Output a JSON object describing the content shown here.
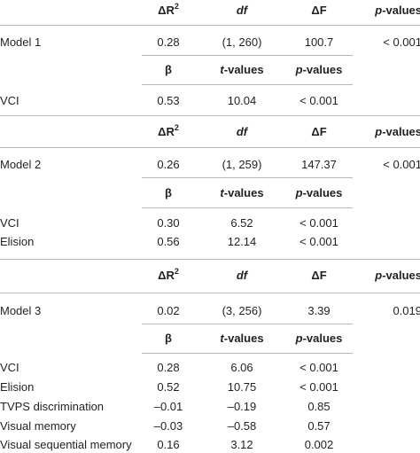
{
  "models": [
    {
      "header": {
        "dr2": "ΔR",
        "dr2_sup": "2",
        "df": "df",
        "dF": "ΔF",
        "p": "p-values"
      },
      "summary": {
        "label": "Model 1",
        "dr2": "0.28",
        "df": "(1, 260)",
        "dF": "100.7",
        "p": "< 0.001"
      },
      "coef_header": {
        "beta": "β",
        "t": "t-values",
        "p": "p-values"
      },
      "predictors": [
        {
          "label": "VCI",
          "beta": "0.53",
          "t": "10.04",
          "p": "< 0.001"
        }
      ]
    },
    {
      "header": {
        "dr2": "ΔR",
        "dr2_sup": "2",
        "df": "df",
        "dF": "ΔF",
        "p": "p-values"
      },
      "summary": {
        "label": "Model 2",
        "dr2": "0.26",
        "df": "(1, 259)",
        "dF": "147.37",
        "p": "< 0.001"
      },
      "coef_header": {
        "beta": "β",
        "t": "t-values",
        "p": "p-values"
      },
      "predictors": [
        {
          "label": "VCI",
          "beta": "0.30",
          "t": "6.52",
          "p": "< 0.001"
        },
        {
          "label": "Elision",
          "beta": "0.56",
          "t": "12.14",
          "p": "< 0.001"
        }
      ]
    },
    {
      "header": {
        "dr2": "ΔR",
        "dr2_sup": "2",
        "df": "df",
        "dF": "ΔF",
        "p": "p-values"
      },
      "summary": {
        "label": "Model 3",
        "dr2": "0.02",
        "df": "(3, 256)",
        "dF": "3.39",
        "p": "0.019"
      },
      "coef_header": {
        "beta": "β",
        "t": "t-values",
        "p": "p-values"
      },
      "predictors": [
        {
          "label": "VCI",
          "beta": "0.28",
          "t": "6.06",
          "p": "< 0.001"
        },
        {
          "label": "Elision",
          "beta": "0.52",
          "t": "10.75",
          "p": "< 0.001"
        },
        {
          "label": "TVPS discrimination",
          "beta": "–0.01",
          "t": "–0.19",
          "p": "0.85"
        },
        {
          "label": "Visual memory",
          "beta": "–0.03",
          "t": "–0.58",
          "p": "0.57"
        },
        {
          "label": "Visual sequential memory",
          "beta": "0.16",
          "t": "3.12",
          "p": "0.002"
        }
      ]
    }
  ]
}
